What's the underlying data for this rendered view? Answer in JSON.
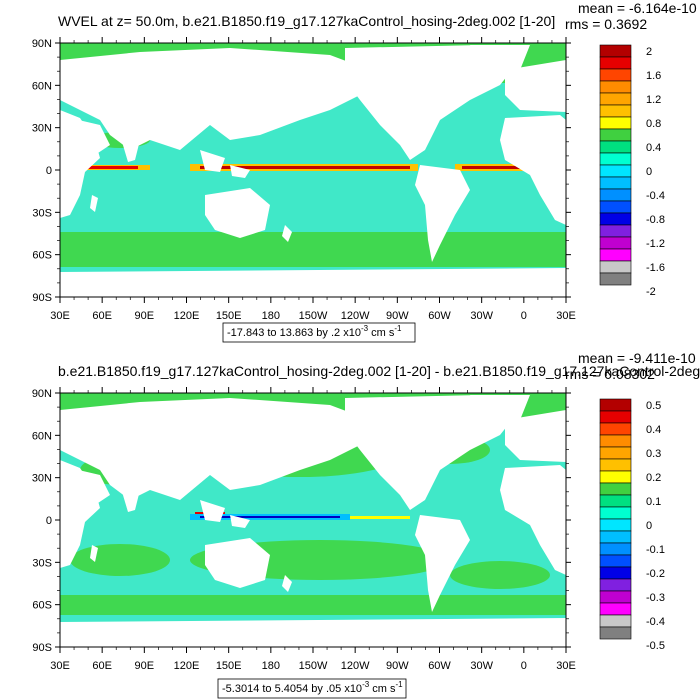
{
  "panels": [
    {
      "title": "WVEL at z=  50.0m, b.e21.B1850.f19_g17.127kaControl_hosing-2deg.002 [1-20]",
      "mean": "mean = -6.164e-10",
      "rms": "rms = 0.3692",
      "range": "-17.843 to 13.863 by .2 x10",
      "range_exp": "-3",
      "range_unit": " cm s",
      "range_unit_exp": "-1",
      "colorbar_labels": [
        "2",
        "1.6",
        "1.2",
        "0.8",
        "0.4",
        "0",
        "-0.4",
        "-0.8",
        "-1.2",
        "-1.6",
        "-2"
      ],
      "colorbar_colors": [
        "#b30000",
        "#e60000",
        "#ff4500",
        "#ff8c00",
        "#ffa500",
        "#ffc000",
        "#ffff00",
        "#40d040",
        "#00e080",
        "#00ffd0",
        "#00e6ff",
        "#00bfff",
        "#0090ff",
        "#0050ff",
        "#0000e6",
        "#8020e0",
        "#c000d0",
        "#ff00ff",
        "#c8c8c8",
        "#808080"
      ]
    },
    {
      "title": "b.e21.B1850.f19_g17.127kaControl_hosing-2deg.002 [1-20] - b.e21.B1850.f19_g17.127kaControl-2deg.",
      "mean": "mean = -9.411e-10",
      "rms": "rms = 0.08302",
      "range": "-5.3014 to 5.4054 by .05 x10",
      "range_exp": "-3",
      "range_unit": " cm s",
      "range_unit_exp": "-1",
      "colorbar_labels": [
        "0.5",
        "0.4",
        "0.3",
        "0.2",
        "0.1",
        "0",
        "-0.1",
        "-0.2",
        "-0.3",
        "-0.4",
        "-0.5"
      ],
      "colorbar_colors": [
        "#b30000",
        "#e60000",
        "#ff4500",
        "#ff8c00",
        "#ffa500",
        "#ffc000",
        "#ffff00",
        "#40d040",
        "#00e080",
        "#00ffd0",
        "#00e6ff",
        "#00bfff",
        "#0090ff",
        "#0050ff",
        "#0000e6",
        "#8020e0",
        "#c000d0",
        "#ff00ff",
        "#c8c8c8",
        "#808080"
      ]
    }
  ],
  "lat_labels": [
    "90N",
    "60N",
    "30N",
    "0",
    "30S",
    "60S",
    "90S"
  ],
  "lon_labels": [
    "30E",
    "60E",
    "90E",
    "120E",
    "150E",
    "180",
    "150W",
    "120W",
    "90W",
    "60W",
    "30W",
    "0",
    "30E"
  ],
  "colors": {
    "ocean_main": "#40e8c8",
    "ocean_green": "#40d850",
    "land": "#ffffff",
    "equator_red": "#c00000",
    "equator_yellow": "#ffff00",
    "equator_blue": "#0000c0"
  }
}
